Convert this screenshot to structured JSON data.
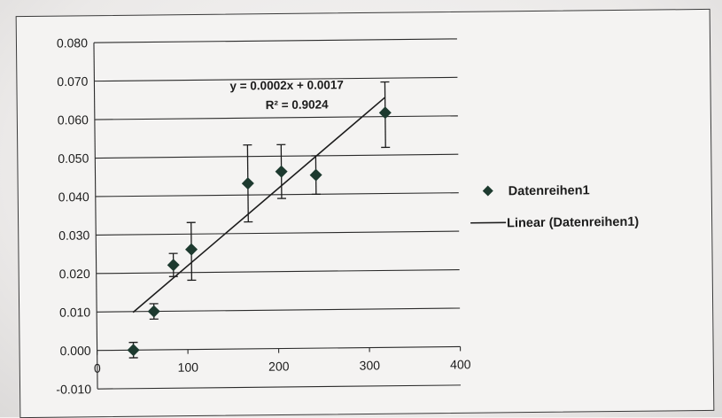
{
  "chart_data": {
    "type": "scatter",
    "title": "",
    "xlabel": "",
    "ylabel": "",
    "xlim": [
      0,
      400
    ],
    "ylim": [
      -0.01,
      0.08
    ],
    "x_ticks": [
      "0",
      "100",
      "200",
      "300",
      "400"
    ],
    "y_ticks": [
      "-0.010",
      "0.000",
      "0.010",
      "0.020",
      "0.030",
      "0.040",
      "0.050",
      "0.060",
      "0.070",
      "0.080"
    ],
    "grid": "horizontal",
    "legend_position": "right",
    "series": [
      {
        "name": "Datenreihen1",
        "marker": "diamond",
        "color": "#1d3a2f",
        "points": [
          {
            "x": 40,
            "y": 0.0,
            "err_low": 0.002,
            "err_high": 0.002
          },
          {
            "x": 63,
            "y": 0.01,
            "err_low": 0.002,
            "err_high": 0.002
          },
          {
            "x": 85,
            "y": 0.022,
            "err_low": 0.003,
            "err_high": 0.003
          },
          {
            "x": 105,
            "y": 0.026,
            "err_low": 0.008,
            "err_high": 0.007
          },
          {
            "x": 168,
            "y": 0.043,
            "err_low": 0.01,
            "err_high": 0.01
          },
          {
            "x": 205,
            "y": 0.046,
            "err_low": 0.007,
            "err_high": 0.007
          },
          {
            "x": 243,
            "y": 0.045,
            "err_low": 0.005,
            "err_high": 0.005
          },
          {
            "x": 320,
            "y": 0.061,
            "err_low": 0.009,
            "err_high": 0.008
          }
        ]
      }
    ],
    "trendline": {
      "name": "Linear (Datenreihen1)",
      "type": "linear",
      "x_range": [
        40,
        320
      ],
      "y_range": [
        0.0098,
        0.065
      ],
      "equation": "y = 0.0002x + 0.0017",
      "r_squared": "R² = 0.9024",
      "color": "#1c1c1c"
    }
  },
  "colors": {
    "background": "#f4f3f2",
    "ink": "#1c1c1c",
    "grid": "#2b2b2b",
    "marker": "#1d3a2f"
  }
}
